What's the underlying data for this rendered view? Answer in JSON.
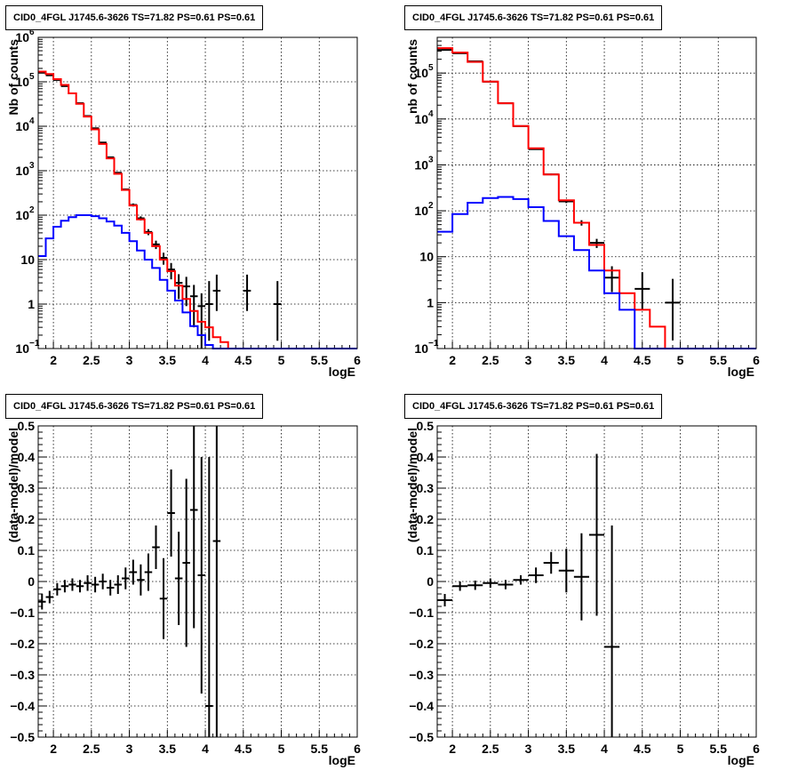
{
  "colors": {
    "data": "#000000",
    "total_model": "#ff0000",
    "source_model": "#0000ff",
    "grid": "#000000"
  },
  "chart_data": [
    {
      "panel": "top-left",
      "type": "line",
      "title": "CID0_4FGL J1745.6-3626 TS=71.82 PS=0.61 PS=0.61",
      "xlabel": "logE",
      "ylabel": "Nb of counts",
      "xlim": [
        1.8,
        6.0
      ],
      "ylim": [
        0.1,
        1000000
      ],
      "yscale": "log",
      "grid": true,
      "xticks": [
        "2",
        "2.5",
        "3",
        "3.5",
        "4",
        "4.5",
        "5",
        "5.5",
        "6"
      ],
      "yticks": [
        {
          "v": 0.1,
          "base": "10",
          "exp": "−1"
        },
        {
          "v": 1,
          "label": "1"
        },
        {
          "v": 10,
          "label": "10"
        },
        {
          "v": 100,
          "base": "10",
          "exp": "2"
        },
        {
          "v": 1000,
          "base": "10",
          "exp": "3"
        },
        {
          "v": 10000,
          "base": "10",
          "exp": "4"
        },
        {
          "v": 100000,
          "base": "10",
          "exp": "5"
        },
        {
          "v": 1000000,
          "base": "10",
          "exp": "6"
        }
      ],
      "bin_edges": [
        1.8,
        1.9,
        2.0,
        2.1,
        2.2,
        2.3,
        2.4,
        2.5,
        2.6,
        2.7,
        2.8,
        2.9,
        3.0,
        3.1,
        3.2,
        3.3,
        3.4,
        3.5,
        3.6,
        3.7,
        3.8,
        3.9,
        4.0,
        4.1,
        4.2,
        4.3,
        4.4,
        4.5,
        4.6,
        4.7,
        4.8,
        4.9,
        5.0,
        5.1,
        5.2,
        5.3,
        5.4,
        5.5,
        5.6,
        5.7,
        5.8,
        5.9,
        6.0
      ],
      "series": [
        {
          "name": "data",
          "kind": "errorbars",
          "x": [
            1.85,
            1.95,
            2.05,
            2.15,
            2.25,
            2.35,
            2.45,
            2.55,
            2.65,
            2.75,
            2.85,
            2.95,
            3.05,
            3.15,
            3.25,
            3.35,
            3.45,
            3.55,
            3.65,
            3.75,
            3.85,
            3.95,
            4.05,
            4.15,
            4.55,
            4.95
          ],
          "y": [
            160000,
            140000,
            110000,
            80000,
            55000,
            33000,
            17000,
            9000,
            4300,
            2000,
            900,
            380,
            170,
            85,
            42,
            22,
            11,
            6,
            3,
            2.5,
            1.5,
            0.9,
            1,
            2,
            2,
            1
          ],
          "yerr_lo": [
            400,
            380,
            330,
            280,
            230,
            180,
            130,
            95,
            65,
            44,
            30,
            19,
            13,
            9,
            6.5,
            4.7,
            3.3,
            2.4,
            1.7,
            1.6,
            1.2,
            0.85,
            0.85,
            1.3,
            1.3,
            0.85
          ],
          "yerr_hi": [
            400,
            380,
            330,
            280,
            230,
            180,
            130,
            95,
            65,
            44,
            30,
            19,
            13,
            9,
            6.5,
            4.7,
            3.3,
            2.4,
            1.7,
            1.6,
            1.2,
            0.85,
            2.3,
            2.6,
            2.6,
            2.3
          ]
        },
        {
          "name": "total model",
          "kind": "step",
          "values": [
            170000,
            150000,
            115000,
            85000,
            55000,
            32000,
            16500,
            8500,
            4000,
            1900,
            850,
            370,
            165,
            80,
            40,
            20,
            10,
            5.5,
            2.6,
            1.3,
            0.7,
            0.4,
            0.3,
            0.18,
            0.14,
            0.1,
            0.1,
            0.1,
            0.1,
            0.1,
            0.1,
            0.1,
            0.1,
            0.1,
            0.1,
            0.1,
            0.1,
            0.1,
            0.1,
            0.1,
            0.1,
            0.1
          ]
        },
        {
          "name": "source model",
          "kind": "step",
          "values": [
            12,
            30,
            55,
            75,
            90,
            100,
            100,
            95,
            85,
            72,
            58,
            40,
            26,
            16,
            10,
            6.5,
            3.5,
            2,
            1.2,
            0.65,
            0.32,
            0.2,
            0.12,
            0.1,
            0.1,
            0.1,
            0.1,
            0.1,
            0.1,
            0.1,
            0.1,
            0.1,
            0.1,
            0.1,
            0.1,
            0.1,
            0.1,
            0.1,
            0.1,
            0.1,
            0.1,
            0.1
          ]
        }
      ]
    },
    {
      "panel": "top-right",
      "type": "line",
      "title": "CID0_4FGL J1745.6-3626 TS=71.82 PS=0.61 PS=0.61",
      "xlabel": "logE",
      "ylabel": "nb of counts",
      "xlim": [
        1.8,
        6.0
      ],
      "ylim": [
        0.1,
        600000
      ],
      "yscale": "log",
      "grid": true,
      "xticks": [
        "2",
        "2.5",
        "3",
        "3.5",
        "4",
        "4.5",
        "5",
        "5.5",
        "6"
      ],
      "yticks": [
        {
          "v": 0.1,
          "base": "10",
          "exp": "−1"
        },
        {
          "v": 1,
          "label": "1"
        },
        {
          "v": 10,
          "label": "10"
        },
        {
          "v": 100,
          "base": "10",
          "exp": "2"
        },
        {
          "v": 1000,
          "base": "10",
          "exp": "3"
        },
        {
          "v": 10000,
          "base": "10",
          "exp": "4"
        },
        {
          "v": 100000,
          "base": "10",
          "exp": "5"
        }
      ],
      "bin_edges": [
        1.8,
        2.0,
        2.2,
        2.4,
        2.6,
        2.8,
        3.0,
        3.2,
        3.4,
        3.6,
        3.8,
        4.0,
        4.2,
        4.4,
        4.6,
        4.8,
        5.0,
        5.2,
        5.4,
        5.6,
        5.8,
        6.0
      ],
      "series": [
        {
          "name": "data",
          "kind": "errorbars",
          "x": [
            1.9,
            2.1,
            2.3,
            2.5,
            2.7,
            2.9,
            3.1,
            3.3,
            3.5,
            3.7,
            3.9,
            4.1,
            4.5,
            4.9
          ],
          "y": [
            320000,
            270000,
            180000,
            65000,
            22000,
            7000,
            2200,
            620,
            160,
            55,
            20,
            3.5,
            2,
            1
          ],
          "yerr_lo": [
            570,
            520,
            420,
            255,
            148,
            84,
            47,
            25,
            12.6,
            7.4,
            4.5,
            1.8,
            1.3,
            0.85
          ],
          "yerr_hi": [
            570,
            520,
            420,
            255,
            148,
            84,
            47,
            25,
            12.6,
            7.4,
            4.5,
            2.7,
            2.6,
            2.3
          ]
        },
        {
          "name": "total model",
          "kind": "step",
          "values": [
            350000,
            280000,
            175000,
            65000,
            22000,
            7000,
            2300,
            620,
            170,
            55,
            18,
            5,
            1.6,
            0.7,
            0.3,
            0.1,
            0.1,
            0.1,
            0.1,
            0.1,
            0.1
          ]
        },
        {
          "name": "source model",
          "kind": "step",
          "values": [
            35,
            85,
            150,
            190,
            200,
            180,
            120,
            60,
            28,
            14,
            5,
            1.6,
            0.7,
            0.1,
            0.1,
            0.1,
            0.1,
            0.1,
            0.1,
            0.1,
            0.1
          ]
        }
      ]
    },
    {
      "panel": "bottom-left",
      "type": "scatter",
      "title": "CID0_4FGL J1745.6-3626 TS=71.82 PS=0.61 PS=0.61",
      "xlabel": "logE",
      "ylabel": "(data-model)/model",
      "xlim": [
        1.8,
        6.0
      ],
      "ylim": [
        -0.5,
        0.5
      ],
      "yscale": "linear",
      "grid": true,
      "xticks": [
        "2",
        "2.5",
        "3",
        "3.5",
        "4",
        "4.5",
        "5",
        "5.5",
        "6"
      ],
      "yticks": [
        {
          "v": -0.5,
          "label": "−0.5"
        },
        {
          "v": -0.4,
          "label": "−0.4"
        },
        {
          "v": -0.3,
          "label": "−0.3"
        },
        {
          "v": -0.2,
          "label": "−0.2"
        },
        {
          "v": -0.1,
          "label": "−0.1"
        },
        {
          "v": 0,
          "label": "0"
        },
        {
          "v": 0.1,
          "label": "0.1"
        },
        {
          "v": 0.2,
          "label": "0.2"
        },
        {
          "v": 0.3,
          "label": "0.3"
        },
        {
          "v": 0.4,
          "label": "0.4"
        },
        {
          "v": 0.5,
          "label": "0.5"
        }
      ],
      "series": [
        {
          "name": "residuals",
          "kind": "errorbars",
          "xhalf": 0.05,
          "x": [
            1.85,
            1.95,
            2.05,
            2.15,
            2.25,
            2.35,
            2.45,
            2.55,
            2.65,
            2.75,
            2.85,
            2.95,
            3.05,
            3.15,
            3.25,
            3.35,
            3.45,
            3.55,
            3.65,
            3.75,
            3.85,
            3.95,
            4.05,
            4.15
          ],
          "y": [
            -0.065,
            -0.05,
            -0.025,
            -0.015,
            -0.01,
            -0.015,
            -0.005,
            -0.01,
            0.0,
            -0.02,
            -0.01,
            0.01,
            0.03,
            0.005,
            0.03,
            0.11,
            -0.055,
            0.22,
            0.01,
            0.06,
            0.23,
            0.02,
            -0.4,
            0.13
          ],
          "yerr": [
            0.025,
            0.02,
            0.02,
            0.02,
            0.02,
            0.02,
            0.025,
            0.025,
            0.025,
            0.025,
            0.03,
            0.035,
            0.04,
            0.05,
            0.06,
            0.07,
            0.13,
            0.14,
            0.15,
            0.27,
            0.38,
            0.38,
            0.8,
            0.9
          ]
        }
      ]
    },
    {
      "panel": "bottom-right",
      "type": "scatter",
      "title": "CID0_4FGL J1745.6-3626 TS=71.82 PS=0.61 PS=0.61",
      "xlabel": "logE",
      "ylabel": "(data-model)/model",
      "xlim": [
        1.8,
        6.0
      ],
      "ylim": [
        -0.5,
        0.5
      ],
      "yscale": "linear",
      "grid": true,
      "xticks": [
        "2",
        "2.5",
        "3",
        "3.5",
        "4",
        "4.5",
        "5",
        "5.5",
        "6"
      ],
      "yticks": [
        {
          "v": -0.5,
          "label": "−0.5"
        },
        {
          "v": -0.4,
          "label": "−0.4"
        },
        {
          "v": -0.3,
          "label": "−0.3"
        },
        {
          "v": -0.2,
          "label": "−0.2"
        },
        {
          "v": -0.1,
          "label": "−0.1"
        },
        {
          "v": 0,
          "label": "0"
        },
        {
          "v": 0.1,
          "label": "0.1"
        },
        {
          "v": 0.2,
          "label": "0.2"
        },
        {
          "v": 0.3,
          "label": "0.3"
        },
        {
          "v": 0.4,
          "label": "0.4"
        },
        {
          "v": 0.5,
          "label": "0.5"
        }
      ],
      "series": [
        {
          "name": "residuals",
          "kind": "errorbars",
          "xhalf": 0.1,
          "x": [
            1.9,
            2.1,
            2.3,
            2.5,
            2.7,
            2.9,
            3.1,
            3.3,
            3.5,
            3.7,
            3.9,
            4.1
          ],
          "y": [
            -0.06,
            -0.015,
            -0.012,
            -0.005,
            -0.01,
            0.005,
            0.02,
            0.06,
            0.035,
            0.015,
            0.15,
            -0.21
          ],
          "yerr": [
            0.02,
            0.015,
            0.015,
            0.015,
            0.015,
            0.015,
            0.025,
            0.035,
            0.07,
            0.14,
            0.26,
            0.39
          ]
        }
      ]
    }
  ]
}
